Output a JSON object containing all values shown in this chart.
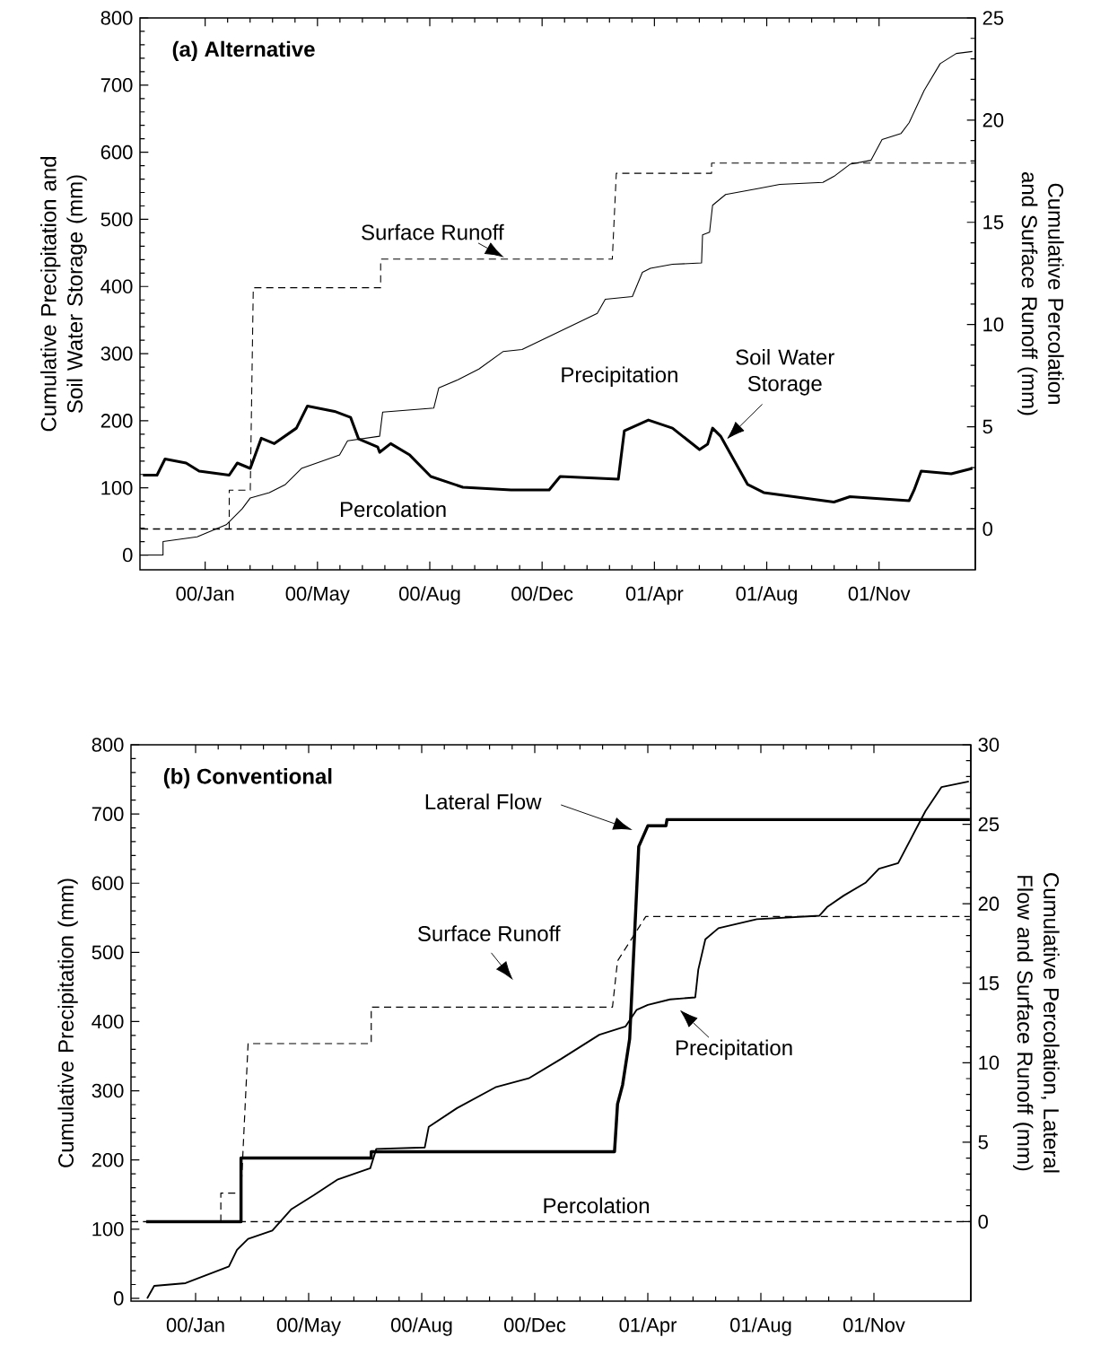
{
  "chart_data": [
    {
      "type": "line",
      "title": "(a) Alternative",
      "ylabel": "Cumulative Precipitation and Soil Water Storage (mm)",
      "y2label": "Cumulative Percolation and Surface Runoff (mm)",
      "xlim": [
        "1999-11-16",
        "2002-02-26"
      ],
      "xticks": [
        {
          "value": "2000-01-20",
          "label": "00/Jan"
        },
        {
          "value": "2000-05-11",
          "label": "00/May"
        },
        {
          "value": "2000-08-31",
          "label": "00/Aug"
        },
        {
          "value": "2000-12-21",
          "label": "00/Dec"
        },
        {
          "value": "2001-04-12",
          "label": "01/Apr"
        },
        {
          "value": "2001-08-02",
          "label": "01/Aug"
        },
        {
          "value": "2001-11-22",
          "label": "01/Nov"
        }
      ],
      "ylim": [
        -22,
        800
      ],
      "yticks": [
        0,
        100,
        200,
        300,
        400,
        500,
        600,
        700,
        800
      ],
      "y2lim": [
        -2,
        25
      ],
      "y2ticks": [
        0,
        5,
        10,
        15,
        20,
        25
      ],
      "series": [
        {
          "name": "Precipitation",
          "color": "#000000",
          "line_style": "solid",
          "x": [
            "1999-11-19",
            "1999-12-09",
            "1999-12-09",
            "2000-01-12",
            "2000-02-10",
            "2000-02-26",
            "2000-03-05",
            "2000-03-24",
            "2000-04-09",
            "2000-04-25",
            "2000-06-02",
            "2000-06-10",
            "2000-07-12",
            "2000-07-15",
            "2000-09-04",
            "2000-09-09",
            "2000-09-28",
            "2000-10-19",
            "2000-11-12",
            "2000-12-01",
            "2001-02-14",
            "2001-02-22",
            "2001-03-21",
            "2001-03-31",
            "2001-04-08",
            "2001-04-30",
            "2001-05-29",
            "2001-05-30",
            "2001-06-06",
            "2001-06-09",
            "2001-06-22",
            "2001-07-25",
            "2001-08-15",
            "2001-09-27",
            "2001-10-08",
            "2001-10-24",
            "2001-11-14",
            "2001-11-25",
            "2001-12-14",
            "2001-12-22",
            "2002-01-06",
            "2002-01-22",
            "2002-02-07",
            "2002-02-23"
          ],
          "values": [
            0,
            0,
            20,
            27,
            45,
            69,
            85,
            93,
            105,
            129,
            149,
            170,
            177,
            213,
            219,
            249,
            261,
            277,
            303,
            306,
            360,
            381,
            385,
            421,
            427,
            433,
            435,
            477,
            481,
            521,
            537,
            546,
            552,
            555,
            564,
            582,
            588,
            619,
            628,
            644,
            692,
            732,
            747,
            750
          ]
        },
        {
          "name": "Soil Water Storage",
          "color": "#000000",
          "line_style": "solid",
          "x": [
            "1999-11-19",
            "1999-12-03",
            "1999-12-11",
            "2000-01-01",
            "2000-01-14",
            "2000-02-13",
            "2000-02-21",
            "2000-03-05",
            "2000-03-16",
            "2000-03-29",
            "2000-04-20",
            "2000-05-01",
            "2000-05-28",
            "2000-06-13",
            "2000-06-21",
            "2000-07-10",
            "2000-07-12",
            "2000-07-23",
            "2000-08-11",
            "2000-09-01",
            "2000-10-03",
            "2000-11-20",
            "2000-12-28",
            "2001-01-08",
            "2001-03-07",
            "2001-03-13",
            "2001-04-06",
            "2001-04-30",
            "2001-05-27",
            "2001-06-04",
            "2001-06-09",
            "2001-06-17",
            "2001-07-14",
            "2001-07-30",
            "2001-10-08",
            "2001-10-24",
            "2001-12-22",
            "2001-12-27",
            "2002-01-03",
            "2002-02-02",
            "2002-02-23"
          ],
          "values": [
            119,
            119,
            143,
            137,
            125,
            119,
            137,
            129,
            174,
            166,
            189,
            222,
            214,
            205,
            173,
            161,
            153,
            166,
            149,
            117,
            101,
            97,
            97,
            117,
            113,
            185,
            201,
            189,
            157,
            165,
            189,
            177,
            105,
            93,
            79,
            87,
            81,
            97,
            125,
            121,
            129
          ]
        },
        {
          "name": "Surface Runoff",
          "color": "#000000",
          "line_style": "dashed",
          "axis": "y2",
          "x": [
            "2000-02-13",
            "2000-02-13",
            "2000-03-05",
            "2000-03-08",
            "2000-07-13",
            "2000-07-13",
            "2001-03-01",
            "2001-03-05",
            "2001-06-08",
            "2001-06-08",
            "2002-02-25"
          ],
          "values": [
            0,
            1.9,
            1.9,
            11.8,
            11.8,
            13.2,
            13.2,
            17.4,
            17.4,
            17.9,
            17.9
          ]
        },
        {
          "name": "Percolation",
          "color": "#000000",
          "line_style": "dashed",
          "axis": "y2",
          "x": [
            "1999-11-17",
            "2002-02-25"
          ],
          "values": [
            0,
            0
          ]
        }
      ]
    },
    {
      "type": "line",
      "title": "(b) Conventional",
      "ylabel": "Cumulative Precipitation (mm)",
      "y2label": "Cumulative Percolation, Lateral Flow and Surface Runoff (mm)",
      "xlim": [
        "1999-11-17",
        "2002-02-26"
      ],
      "xticks": [
        {
          "value": "2000-01-20",
          "label": "00/Jan"
        },
        {
          "value": "2000-05-11",
          "label": "00/May"
        },
        {
          "value": "2000-08-31",
          "label": "00/Aug"
        },
        {
          "value": "2000-12-21",
          "label": "00/Dec"
        },
        {
          "value": "2001-04-12",
          "label": "01/Apr"
        },
        {
          "value": "2001-08-02",
          "label": "01/Aug"
        },
        {
          "value": "2001-11-22",
          "label": "01/Nov"
        }
      ],
      "ylim": [
        -4,
        800
      ],
      "yticks": [
        0,
        100,
        200,
        300,
        400,
        500,
        600,
        700,
        800
      ],
      "y2lim": [
        -5,
        30
      ],
      "y2ticks": [
        0,
        5,
        10,
        15,
        20,
        25,
        30
      ],
      "series": [
        {
          "name": "Precipitation",
          "color": "#000000",
          "line_style": "solid",
          "x": [
            "1999-12-03",
            "1999-12-10",
            "2000-01-10",
            "2000-02-22",
            "2000-03-01",
            "2000-03-12",
            "2000-04-05",
            "2000-04-24",
            "2000-05-16",
            "2000-06-09",
            "2000-07-11",
            "2000-07-17",
            "2000-09-03",
            "2000-09-07",
            "2000-10-05",
            "2000-11-12",
            "2000-12-15",
            "2001-01-16",
            "2001-02-23",
            "2001-03-21",
            "2001-04-01",
            "2001-04-12",
            "2001-05-04",
            "2001-05-29",
            "2001-06-01",
            "2001-06-08",
            "2001-06-21",
            "2001-07-29",
            "2001-09-29",
            "2001-10-07",
            "2001-10-23",
            "2001-11-14",
            "2001-11-27",
            "2001-12-16",
            "2002-01-12",
            "2002-01-28",
            "2002-02-24"
          ],
          "values": [
            0,
            18,
            22,
            46,
            70,
            86,
            98,
            129,
            149,
            172,
            188,
            216,
            218,
            248,
            275,
            305,
            318,
            346,
            381,
            393,
            417,
            424,
            432,
            435,
            475,
            519,
            535,
            548,
            553,
            566,
            582,
            601,
            621,
            629,
            704,
            739,
            747
          ]
        },
        {
          "name": "Lateral Flow",
          "color": "#000000",
          "line_style": "solid",
          "axis": "y2",
          "x": [
            "1999-12-02",
            "2000-03-05",
            "2000-03-05",
            "2000-07-12",
            "2000-07-12",
            "2001-03-10",
            "2001-03-13",
            "2001-03-18",
            "2001-03-25",
            "2001-04-03",
            "2001-04-12",
            "2001-04-30",
            "2001-05-01",
            "2002-02-25"
          ],
          "values": [
            0,
            0,
            4.0,
            4.0,
            4.4,
            4.4,
            7.4,
            8.6,
            11.5,
            23.6,
            24.9,
            24.9,
            25.3,
            25.3
          ]
        },
        {
          "name": "Surface Runoff",
          "color": "#000000",
          "line_style": "dashed",
          "axis": "y2",
          "x": [
            "2000-02-14",
            "2000-02-14",
            "2000-03-05",
            "2000-03-12",
            "2000-07-12",
            "2000-07-12",
            "2001-03-08",
            "2001-03-13",
            "2001-04-10",
            "2002-02-25"
          ],
          "values": [
            0,
            1.8,
            1.8,
            11.2,
            11.2,
            13.5,
            13.5,
            16.4,
            19.2,
            19.2
          ]
        },
        {
          "name": "Percolation",
          "color": "#000000",
          "line_style": "dashed",
          "axis": "y2",
          "x": [
            "1999-11-17",
            "2002-02-25"
          ],
          "values": [
            0,
            0
          ]
        }
      ]
    }
  ]
}
